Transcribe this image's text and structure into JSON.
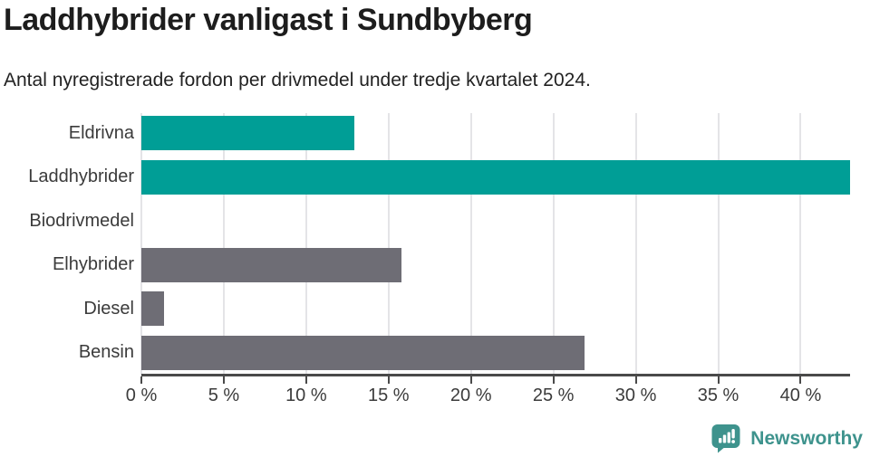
{
  "header": {
    "title": "Laddhybrider vanligast i Sundbyberg",
    "subtitle": "Antal nyregistrerade fordon per drivmedel under tredje kvartalet 2024."
  },
  "chart_data": {
    "type": "bar",
    "orientation": "horizontal",
    "title": "Laddhybrider vanligast i Sundbyberg",
    "subtitle": "Antal nyregistrerade fordon per drivmedel under tredje kvartalet 2024.",
    "categories": [
      "Eldrivna",
      "Laddhybrider",
      "Biodrivmedel",
      "Elhybrider",
      "Diesel",
      "Bensin"
    ],
    "values": [
      12.9,
      43.0,
      0,
      15.8,
      1.4,
      26.9
    ],
    "unit": "%",
    "xlim": [
      0,
      43
    ],
    "x_ticks": [
      0,
      5,
      10,
      15,
      20,
      25,
      30,
      35,
      40
    ],
    "x_tick_labels": [
      "0 %",
      "5 %",
      "10 %",
      "15 %",
      "20 %",
      "25 %",
      "30 %",
      "35 %",
      "40 %"
    ],
    "grid": true,
    "legend": null,
    "colors": {
      "highlight": "#009e96",
      "default": "#6e6d75"
    },
    "bar_colors": [
      "#009e96",
      "#009e96",
      "#6e6d75",
      "#6e6d75",
      "#6e6d75",
      "#6e6d75"
    ]
  },
  "footer": {
    "brand": "Newsworthy",
    "brand_color": "#3e938d"
  }
}
